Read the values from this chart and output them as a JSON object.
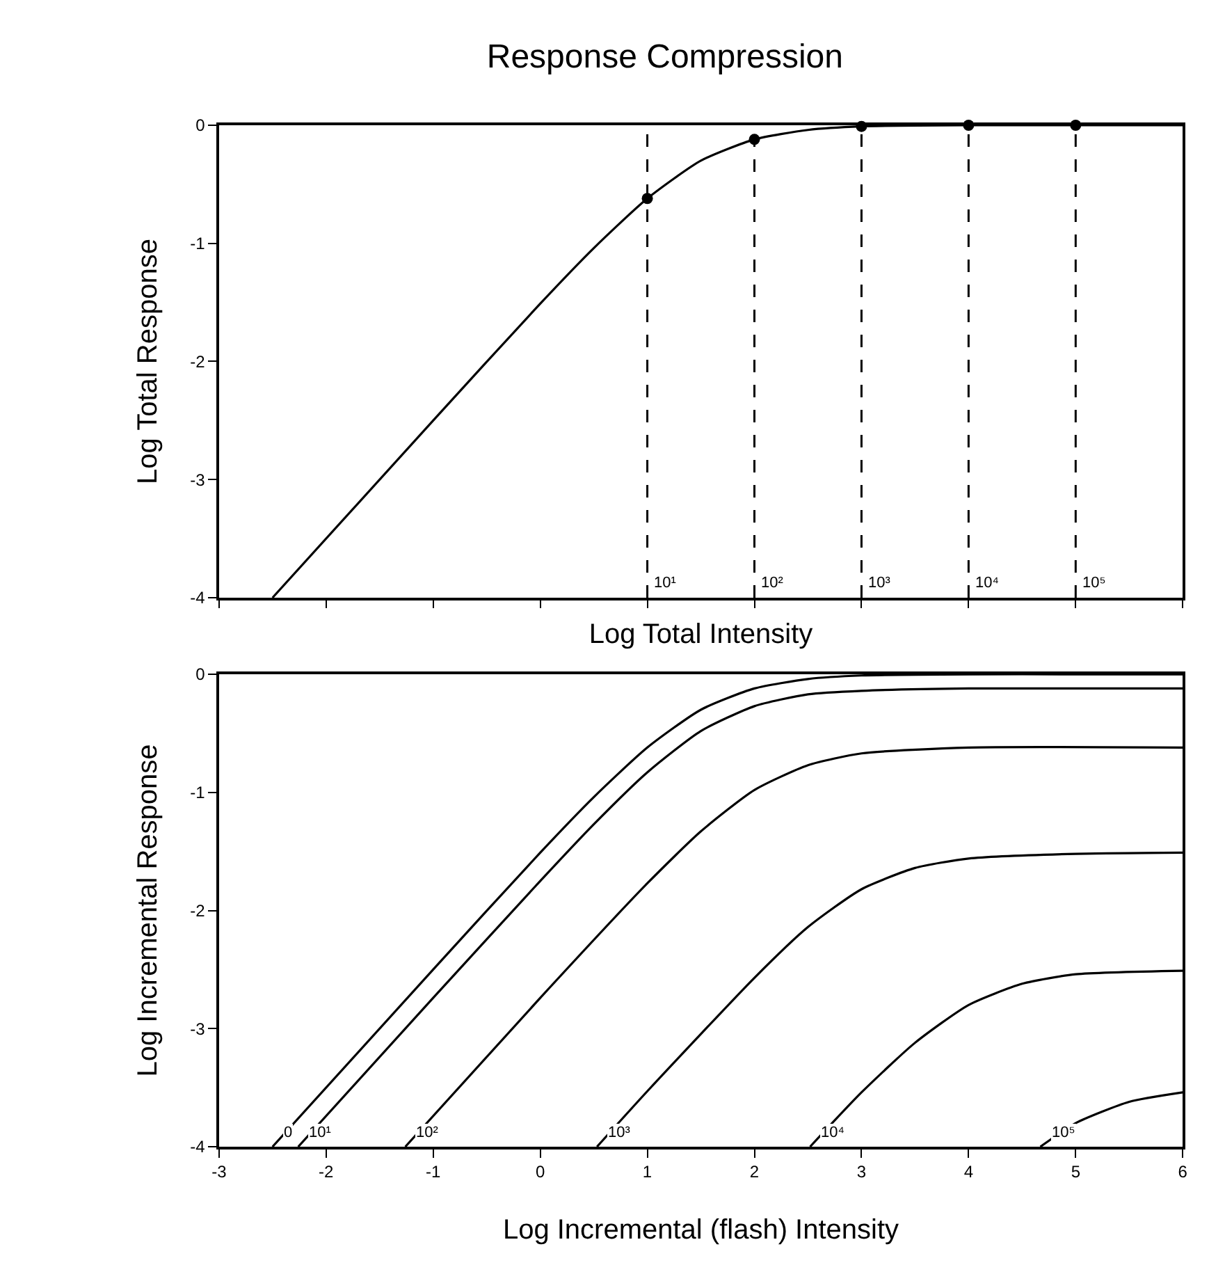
{
  "chart_data": [
    {
      "type": "line",
      "title": "Response Compression",
      "xlabel": "Log Total Intensity",
      "ylabel": "Log Total Response",
      "xlim": [
        -3,
        6
      ],
      "xticks": [
        -3,
        -2,
        -1,
        0,
        1,
        2,
        3,
        4,
        5,
        6
      ],
      "ylim": [
        -4,
        0
      ],
      "yticks": [
        -4,
        -3,
        -2,
        -1,
        0
      ],
      "tick_labels": "y",
      "series": [
        {
          "type": "line",
          "color": "#000000",
          "marker": "none",
          "x": [
            -2.5,
            -1,
            0,
            0.5,
            1,
            1.5,
            2,
            2.5,
            3,
            4,
            5,
            6
          ],
          "values": [
            -4.0,
            -2.5,
            -1.51,
            -1.04,
            -0.62,
            -0.3,
            -0.12,
            -0.04,
            -0.01,
            0,
            0,
            0
          ]
        },
        {
          "type": "scatter",
          "color": "#000000",
          "marker": "circle",
          "x": [
            1,
            2,
            3,
            4,
            5
          ],
          "values": [
            -0.62,
            -0.12,
            -0.01,
            0,
            0
          ]
        }
      ],
      "ref_lines": [
        {
          "axis": "x",
          "value": 1,
          "color": "#000000",
          "line_style": "dashed"
        },
        {
          "axis": "x",
          "value": 2,
          "color": "#000000",
          "line_style": "dashed"
        },
        {
          "axis": "x",
          "value": 3,
          "color": "#000000",
          "line_style": "dashed"
        },
        {
          "axis": "x",
          "value": 4,
          "color": "#000000",
          "line_style": "dashed"
        },
        {
          "axis": "x",
          "value": 5,
          "color": "#000000",
          "line_style": "dashed"
        }
      ],
      "annotations": [
        {
          "text": "10¹",
          "x": 1,
          "y": -4
        },
        {
          "text": "10²",
          "x": 2,
          "y": -4
        },
        {
          "text": "10³",
          "x": 3,
          "y": -4
        },
        {
          "text": "10⁴",
          "x": 4,
          "y": -4
        },
        {
          "text": "10⁵",
          "x": 5,
          "y": -4
        }
      ]
    },
    {
      "type": "line",
      "xlabel": "Log Incremental (flash) Intensity",
      "ylabel": "Log Incremental Response",
      "xlim": [
        -3,
        6
      ],
      "xticks": [
        -3,
        -2,
        -1,
        0,
        1,
        2,
        3,
        4,
        5,
        6
      ],
      "ylim": [
        -4,
        0
      ],
      "yticks": [
        -4,
        -3,
        -2,
        -1,
        0
      ],
      "marker": "none",
      "series": [
        {
          "name": "0",
          "color": "#000000",
          "x": [
            -2.5,
            -1,
            0,
            0.5,
            1,
            1.5,
            2,
            2.5,
            3,
            4,
            5,
            6
          ],
          "values": [
            -4.0,
            -2.5,
            -1.51,
            -1.04,
            -0.62,
            -0.3,
            -0.12,
            -0.04,
            -0.01,
            0,
            0,
            0
          ]
        },
        {
          "name": "10¹",
          "color": "#000000",
          "x": [
            -2.26,
            -1,
            0,
            0.5,
            1,
            1.5,
            2,
            2.5,
            3,
            4,
            6
          ],
          "values": [
            -4.0,
            -2.74,
            -1.75,
            -1.27,
            -0.83,
            -0.48,
            -0.27,
            -0.17,
            -0.14,
            -0.12,
            -0.12
          ]
        },
        {
          "name": "10²",
          "color": "#000000",
          "x": [
            -1.26,
            0,
            1,
            1.5,
            2,
            2.5,
            3,
            4,
            6
          ],
          "values": [
            -4.0,
            -2.74,
            -1.77,
            -1.33,
            -0.98,
            -0.77,
            -0.67,
            -0.62,
            -0.62
          ]
        },
        {
          "name": "10³",
          "color": "#000000",
          "x": [
            0.53,
            1,
            2,
            2.5,
            3,
            3.5,
            4,
            5,
            6
          ],
          "values": [
            -4.0,
            -3.53,
            -2.57,
            -2.14,
            -1.82,
            -1.64,
            -1.56,
            -1.52,
            -1.51
          ]
        },
        {
          "name": "10⁴",
          "color": "#000000",
          "x": [
            2.52,
            3,
            3.5,
            4,
            4.5,
            5,
            6
          ],
          "values": [
            -4.0,
            -3.54,
            -3.12,
            -2.8,
            -2.62,
            -2.54,
            -2.51
          ]
        },
        {
          "name": "10⁵",
          "color": "#000000",
          "x": [
            4.67,
            5,
            5.5,
            6
          ],
          "values": [
            -4.0,
            -3.8,
            -3.62,
            -3.54
          ]
        }
      ]
    }
  ]
}
